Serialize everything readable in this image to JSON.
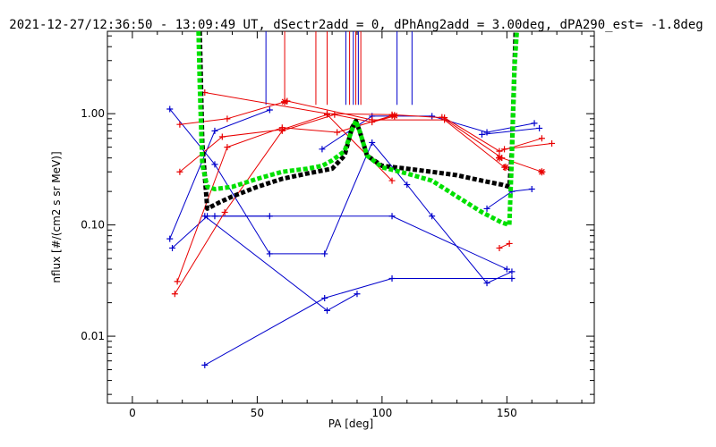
{
  "chart_data": {
    "type": "line",
    "title": "2021-12-27/12:36:50 - 13:09:49 UT, dSectr2add = 0, dPhAng2add = 3.00deg, dPA290_est=  -1.8deg",
    "xlabel": "PA [deg]",
    "ylabel": "nflux [#/(cm2 s sr MeV)]",
    "xlim": [
      -10,
      185
    ],
    "ylim": [
      0.0025,
      5.5
    ],
    "yscale": "log",
    "x_ticks": [
      0,
      50,
      100,
      150
    ],
    "x_tick_labels": [
      "0",
      "50",
      "100",
      "150"
    ],
    "y_ticks": [
      0.01,
      0.1,
      1.0
    ],
    "y_tick_labels": [
      "0.01",
      "0.10",
      "1.00"
    ],
    "grid": false,
    "legend": "none",
    "colors": {
      "blue": "#0000cc",
      "red": "#e80000",
      "black": "#000000",
      "green": "#00e000"
    },
    "series": [
      {
        "color": "blue",
        "marker": "plus",
        "values": [
          [
            15,
            1.1
          ],
          [
            33,
            0.35
          ],
          [
            55,
            0.055
          ],
          [
            77,
            0.055
          ],
          [
            96,
            0.55
          ],
          [
            110,
            0.23
          ],
          [
            120,
            0.12
          ],
          [
            142,
            0.03
          ],
          [
            152,
            0.038
          ]
        ]
      },
      {
        "color": "blue",
        "marker": "plus",
        "values": [
          [
            16,
            0.062
          ],
          [
            30,
            0.12
          ],
          [
            104,
            0.12
          ],
          [
            150,
            0.04
          ]
        ]
      },
      {
        "color": "blue",
        "marker": "plus",
        "values": [
          [
            15,
            0.075
          ],
          [
            33,
            0.7
          ],
          [
            55,
            1.08
          ]
        ]
      },
      {
        "color": "blue",
        "marker": "plus",
        "values": [
          [
            29,
            0.12
          ],
          [
            78,
            0.017
          ],
          [
            90,
            0.024
          ]
        ]
      },
      {
        "color": "blue",
        "marker": "plus",
        "values": [
          [
            29,
            0.0055
          ],
          [
            77,
            0.022
          ],
          [
            104,
            0.033
          ],
          [
            152,
            0.033
          ]
        ]
      },
      {
        "color": "blue",
        "marker": "plus",
        "values": [
          [
            76,
            0.48
          ],
          [
            96,
            0.95
          ],
          [
            120,
            0.95
          ],
          [
            142,
            0.68
          ],
          [
            161,
            0.82
          ]
        ]
      },
      {
        "color": "blue",
        "marker": "plus",
        "values": [
          [
            33,
            0.12
          ],
          [
            55,
            0.12
          ]
        ]
      },
      {
        "color": "blue",
        "marker": "plus",
        "values": [
          [
            142,
            0.14
          ],
          [
            152,
            0.2
          ],
          [
            160,
            0.21
          ]
        ]
      },
      {
        "color": "blue",
        "marker": "plus",
        "values": [
          [
            140,
            0.65
          ],
          [
            163,
            0.74
          ]
        ]
      },
      {
        "color": "red",
        "marker": "plus",
        "values": [
          [
            17,
            0.024
          ],
          [
            37,
            0.13
          ],
          [
            60,
            0.7
          ],
          [
            81,
            0.98
          ],
          [
            96,
            0.84
          ],
          [
            105,
            0.95
          ]
        ]
      },
      {
        "color": "red",
        "marker": "plus",
        "values": [
          [
            18,
            0.031
          ],
          [
            38,
            0.5
          ],
          [
            60,
            0.75
          ],
          [
            82,
            0.68
          ],
          [
            104,
            0.96
          ]
        ]
      },
      {
        "color": "red",
        "marker": "plus",
        "values": [
          [
            19,
            0.8
          ],
          [
            38,
            0.9
          ],
          [
            62,
            1.3
          ],
          [
            96,
            0.88
          ],
          [
            125,
            0.88
          ],
          [
            149,
            0.33
          ]
        ]
      },
      {
        "color": "red",
        "marker": "plus",
        "values": [
          [
            29,
            1.55
          ],
          [
            78,
            1.0
          ],
          [
            104,
            0.98
          ],
          [
            125,
            0.92
          ],
          [
            147,
            0.46
          ],
          [
            164,
            0.6
          ]
        ]
      },
      {
        "color": "red",
        "marker": "plus",
        "values": [
          [
            19,
            0.3
          ],
          [
            36,
            0.62
          ],
          [
            60,
            0.72
          ],
          [
            78,
            0.98
          ],
          [
            104,
            0.25
          ]
        ]
      },
      {
        "color": "red",
        "marker": "plus",
        "values": [
          [
            147,
            0.062
          ],
          [
            151,
            0.068
          ]
        ]
      },
      {
        "color": "red",
        "marker": "plus",
        "values": [
          [
            124,
            0.93
          ],
          [
            148,
            0.4
          ],
          [
            164,
            0.3
          ]
        ]
      },
      {
        "color": "red",
        "marker": "plus",
        "values": [
          [
            149,
            0.48
          ],
          [
            168,
            0.54
          ]
        ]
      }
    ],
    "model_curves": [
      {
        "color": "black",
        "style": "thick-dashed",
        "values": [
          [
            27,
            5.5
          ],
          [
            28,
            0.55
          ],
          [
            30,
            0.14
          ],
          [
            35,
            0.16
          ],
          [
            40,
            0.18
          ],
          [
            50,
            0.22
          ],
          [
            60,
            0.26
          ],
          [
            70,
            0.29
          ],
          [
            80,
            0.32
          ],
          [
            85,
            0.42
          ],
          [
            88,
            0.75
          ],
          [
            89.5,
            0.86
          ],
          [
            91,
            0.7
          ],
          [
            94,
            0.42
          ],
          [
            100,
            0.34
          ],
          [
            110,
            0.32
          ],
          [
            120,
            0.3
          ],
          [
            130,
            0.28
          ],
          [
            140,
            0.25
          ],
          [
            148,
            0.23
          ],
          [
            151,
            0.22
          ],
          [
            152,
            0.45
          ],
          [
            153.5,
            5.5
          ]
        ]
      },
      {
        "color": "green",
        "style": "thick-dashed",
        "values": [
          [
            26.5,
            5.5
          ],
          [
            27,
            1.8
          ],
          [
            28,
            0.35
          ],
          [
            30,
            0.22
          ],
          [
            33,
            0.21
          ],
          [
            40,
            0.22
          ],
          [
            50,
            0.26
          ],
          [
            60,
            0.3
          ],
          [
            70,
            0.32
          ],
          [
            76,
            0.34
          ],
          [
            80,
            0.38
          ],
          [
            85,
            0.46
          ],
          [
            88,
            0.72
          ],
          [
            89.5,
            0.86
          ],
          [
            91,
            0.7
          ],
          [
            94,
            0.42
          ],
          [
            100,
            0.33
          ],
          [
            110,
            0.29
          ],
          [
            120,
            0.25
          ],
          [
            130,
            0.18
          ],
          [
            140,
            0.13
          ],
          [
            148,
            0.105
          ],
          [
            151,
            0.1
          ],
          [
            152,
            0.4
          ],
          [
            153,
            2.5
          ],
          [
            154,
            5.5
          ]
        ]
      }
    ],
    "vertical_markers": [
      {
        "color": "blue",
        "x": 53.5,
        "y_from": 1.2,
        "y_to": 5.5
      },
      {
        "color": "red",
        "x": 61,
        "y_from": 1.2,
        "y_to": 5.5
      },
      {
        "color": "red",
        "x": 73.5,
        "y_from": 1.2,
        "y_to": 5.5
      },
      {
        "color": "red",
        "x": 78,
        "y_from": 1.2,
        "y_to": 5.5
      },
      {
        "color": "blue",
        "x": 85.5,
        "y_from": 1.2,
        "y_to": 5.5
      },
      {
        "color": "red",
        "x": 87,
        "y_from": 1.2,
        "y_to": 5.5
      },
      {
        "color": "blue",
        "x": 88.5,
        "y_from": 1.2,
        "y_to": 5.5
      },
      {
        "color": "red",
        "x": 89.5,
        "y_from": 1.2,
        "y_to": 5.5
      },
      {
        "color": "blue",
        "x": 90.5,
        "y_from": 1.2,
        "y_to": 5.5
      },
      {
        "color": "red",
        "x": 91.5,
        "y_from": 1.2,
        "y_to": 5.5
      },
      {
        "color": "blue",
        "x": 106,
        "y_from": 1.2,
        "y_to": 5.5
      },
      {
        "color": "blue",
        "x": 112,
        "y_from": 1.2,
        "y_to": 5.5
      }
    ],
    "star_markers": [
      {
        "color": "red",
        "x": 61,
        "y": 1.28
      },
      {
        "color": "red",
        "x": 105,
        "y": 0.96
      },
      {
        "color": "red",
        "x": 147,
        "y": 0.4
      },
      {
        "color": "red",
        "x": 149.5,
        "y": 0.33
      },
      {
        "color": "red",
        "x": 164,
        "y": 0.3
      }
    ]
  }
}
